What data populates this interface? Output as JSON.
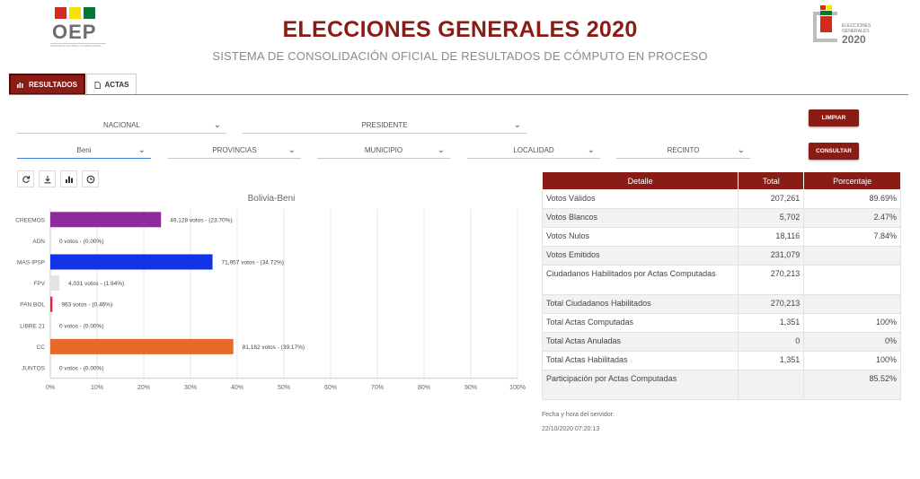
{
  "header": {
    "logo_left": "OEP",
    "logo_left_sub": "ÓRGANO ELECTORAL PLURINACIONAL",
    "title": "ELECCIONES GENERALES 2020",
    "subtitle": "SISTEMA DE CONSOLIDACIÓN OFICIAL DE RESULTADOS DE CÓMPUTO EN PROCESO",
    "logo_right_line1": "ELECCIONES",
    "logo_right_line2": "GENERALES",
    "logo_right_year": "2020"
  },
  "tabs": [
    {
      "label": "RESULTADOS",
      "icon": "chart-icon",
      "active": true
    },
    {
      "label": "ACTAS",
      "icon": "document-icon",
      "active": false
    }
  ],
  "filters": {
    "row1": [
      {
        "value": "NACIONAL"
      },
      {
        "value": "PRESIDENTE"
      }
    ],
    "row2": [
      {
        "value": "Beni"
      },
      {
        "value": "PROVINCIAS"
      },
      {
        "value": "MUNICIPIO"
      },
      {
        "value": "LOCALIDAD"
      },
      {
        "value": "RECINTO"
      }
    ],
    "clear_label": "LIMPIAR",
    "query_label": "CONSULTAR"
  },
  "tools": [
    "refresh-icon",
    "download-icon",
    "bar-chart-icon",
    "clock-icon"
  ],
  "chart_data": {
    "type": "bar",
    "orientation": "horizontal",
    "title": "Bolivia-Beni",
    "categories": [
      "CREEMOS",
      "ADN",
      "MAS-IPSP",
      "FPV",
      "PAN BOL",
      "LIBRE 21",
      "CC",
      "JUNTOS"
    ],
    "values": [
      23.7,
      0.0,
      34.72,
      1.94,
      0.46,
      0.0,
      39.17,
      0.0
    ],
    "labels": [
      "49,128 votos - (23.70%)",
      "0 votos - (0.00%)",
      "71,957 votos - (34.72%)",
      "4,031 votos - (1.94%)",
      "963 votos - (0.46%)",
      "0 votos - (0.00%)",
      "81,182 votos - (39.17%)",
      "0 votos - (0.00%)"
    ],
    "colors": [
      "#8e2a9a",
      "#cccccc",
      "#1133e8",
      "#e3e3e3",
      "#d42a3c",
      "#cccccc",
      "#e8692a",
      "#cccccc"
    ],
    "xlim": [
      0,
      100
    ],
    "xticks": [
      "0%",
      "10%",
      "20%",
      "30%",
      "40%",
      "50%",
      "60%",
      "70%",
      "80%",
      "90%",
      "100%"
    ],
    "grid": true
  },
  "table": {
    "headers": [
      "Detalle",
      "Total",
      "Porcentaje"
    ],
    "rows": [
      [
        "Votos Válidos",
        "207,261",
        "89.69%"
      ],
      [
        "Votos Blancos",
        "5,702",
        "2.47%"
      ],
      [
        "Votos Nulos",
        "18,116",
        "7.84%"
      ],
      [
        "Votos Emitidos",
        "231,079",
        ""
      ],
      [
        "Ciudadanos Habilitados por Actas Computadas",
        "270,213",
        ""
      ],
      [
        "Total Ciudadanos Habilitados",
        "270,213",
        ""
      ],
      [
        "Total Actas Computadas",
        "1,351",
        "100%"
      ],
      [
        "Total Actas Anuladas",
        "0",
        "0%"
      ],
      [
        "Total Actas Habilitadas",
        "1,351",
        "100%"
      ],
      [
        "Participación por Actas Computadas",
        "",
        "85.52%"
      ]
    ]
  },
  "server": {
    "label": "Fecha y hora del servidor:",
    "datetime": "22/10/2020 07:20:13"
  }
}
